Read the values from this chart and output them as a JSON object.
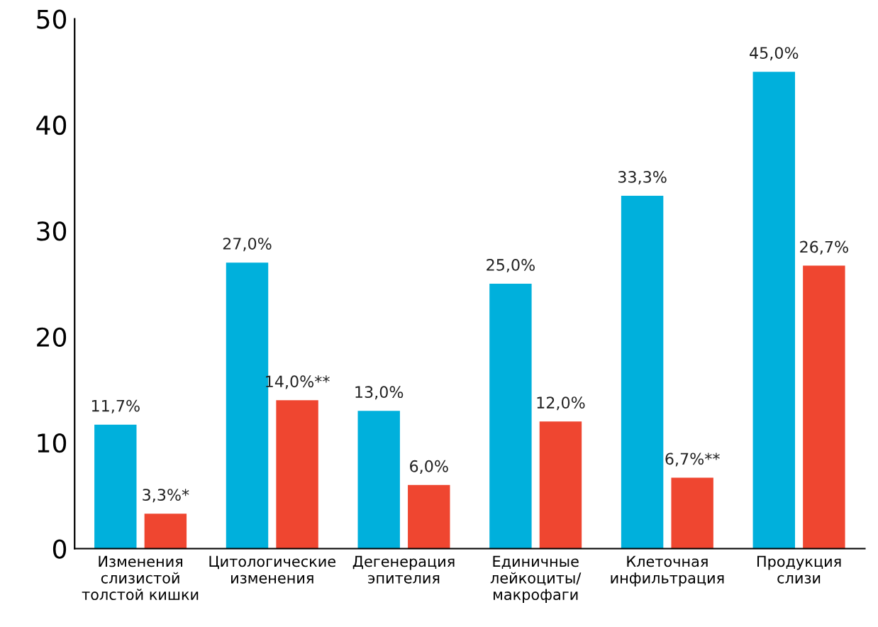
{
  "chart_data": {
    "type": "bar",
    "categories": [
      "Изменения\nслизистой\nтолстой кишки",
      "Цитологические\nизменения",
      "Дегенерация\nэпителия",
      "Единичные\nлейкоциты/\nмакрофаги",
      "Клеточная\nинфильтрация",
      "Продукция\nслизи"
    ],
    "series": [
      {
        "color": "#00b0dc",
        "values": [
          11.7,
          27.0,
          13.0,
          25.0,
          33.3,
          45.0
        ],
        "value_labels": [
          "11,7%",
          "27,0%",
          "13,0%",
          "25,0%",
          "33,3%",
          "45,0%"
        ]
      },
      {
        "color": "#ef4630",
        "values": [
          3.3,
          14.0,
          6.0,
          12.0,
          6.7,
          26.7
        ],
        "value_labels": [
          "3,3%*",
          "14,0%**",
          "6,0%",
          "12,0%",
          "6,7%**",
          "26,7%"
        ]
      }
    ],
    "ylim": [
      0,
      50
    ],
    "yticks": [
      0,
      10,
      20,
      30,
      40,
      50
    ],
    "grid": false,
    "legend": false
  }
}
